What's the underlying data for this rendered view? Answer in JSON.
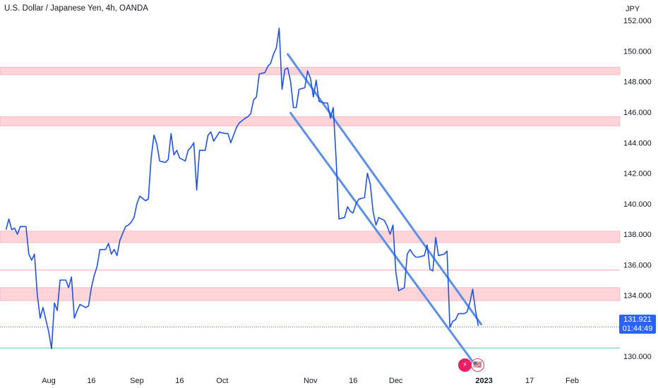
{
  "header": {
    "title": "U.S. Dollar / Japanese Yen, 4h, OANDA",
    "currency": "JPY"
  },
  "price_tag": {
    "price": "131.921",
    "countdown": "01:44:49"
  },
  "events": [
    {
      "icon": "lightning-icon",
      "glyph": "⚡"
    },
    {
      "icon": "us-flag-icon",
      "glyph": "🇺🇸"
    }
  ],
  "colors": {
    "line": "#1e53e5",
    "channel": "#5b8fe8",
    "zone_fill": "#ffcdd2",
    "zone_stroke": "#f7a1a7",
    "price_tag": "#2962ff",
    "last_price_line": "#2962ff",
    "support_line": "#4dd0a8"
  },
  "chart_data": {
    "type": "line",
    "title": "U.S. Dollar / Japanese Yen, 4h, OANDA",
    "ylabel": "JPY",
    "ylim": [
      128.85,
      153.35
    ],
    "x_ticks": [
      {
        "label": "Aug",
        "date": "2022-08-01"
      },
      {
        "label": "16",
        "date": "2022-08-16"
      },
      {
        "label": "Sep",
        "date": "2022-09-01"
      },
      {
        "label": "16",
        "date": "2022-09-16"
      },
      {
        "label": "Oct",
        "date": "2022-10-01"
      },
      {
        "label": "Nov",
        "date": "2022-11-01"
      },
      {
        "label": "16",
        "date": "2022-11-16"
      },
      {
        "label": "Dec",
        "date": "2022-12-01"
      },
      {
        "label": "2023",
        "date": "2023-01-01",
        "bold": true
      },
      {
        "label": "17",
        "date": "2023-01-17"
      },
      {
        "label": "Feb",
        "date": "2023-02-01"
      }
    ],
    "y_ticks": [
      "130.000",
      "132.000",
      "134.000",
      "136.000",
      "138.000",
      "140.000",
      "142.000",
      "144.000",
      "146.000",
      "148.000",
      "150.000",
      "152.000"
    ],
    "series": [
      {
        "points": [
          [
            "2022-07-17",
            138.3
          ],
          [
            "2022-07-18",
            139.0
          ],
          [
            "2022-07-19",
            138.3
          ],
          [
            "2022-07-20",
            138.4
          ],
          [
            "2022-07-21",
            138.0
          ],
          [
            "2022-07-22",
            138.5
          ],
          [
            "2022-07-24",
            138.5
          ],
          [
            "2022-07-25",
            136.7
          ],
          [
            "2022-07-26",
            136.3
          ],
          [
            "2022-07-27",
            136.7
          ],
          [
            "2022-07-28",
            134.0
          ],
          [
            "2022-07-29",
            132.5
          ],
          [
            "2022-07-30",
            133.2
          ],
          [
            "2022-08-01",
            131.6
          ],
          [
            "2022-08-02",
            130.5
          ],
          [
            "2022-08-03",
            133.5
          ],
          [
            "2022-08-04",
            133.0
          ],
          [
            "2022-08-05",
            135.0
          ],
          [
            "2022-08-07",
            135.0
          ],
          [
            "2022-08-08",
            134.5
          ],
          [
            "2022-08-09",
            135.2
          ],
          [
            "2022-08-10",
            132.5
          ],
          [
            "2022-08-11",
            133.0
          ],
          [
            "2022-08-12",
            133.4
          ],
          [
            "2022-08-14",
            133.2
          ],
          [
            "2022-08-15",
            133.3
          ],
          [
            "2022-08-16",
            134.5
          ],
          [
            "2022-08-17",
            135.3
          ],
          [
            "2022-08-18",
            135.9
          ],
          [
            "2022-08-19",
            137.0
          ],
          [
            "2022-08-21",
            137.0
          ],
          [
            "2022-08-22",
            137.4
          ],
          [
            "2022-08-23",
            136.7
          ],
          [
            "2022-08-24",
            137.0
          ],
          [
            "2022-08-25",
            136.6
          ],
          [
            "2022-08-26",
            137.6
          ],
          [
            "2022-08-28",
            138.5
          ],
          [
            "2022-08-29",
            138.6
          ],
          [
            "2022-08-30",
            138.8
          ],
          [
            "2022-08-31",
            139.1
          ],
          [
            "2022-09-01",
            140.0
          ],
          [
            "2022-09-02",
            140.5
          ],
          [
            "2022-09-04",
            140.2
          ],
          [
            "2022-09-05",
            140.3
          ],
          [
            "2022-09-06",
            143.0
          ],
          [
            "2022-09-07",
            144.5
          ],
          [
            "2022-09-08",
            143.9
          ],
          [
            "2022-09-09",
            142.8
          ],
          [
            "2022-09-11",
            142.7
          ],
          [
            "2022-09-12",
            142.9
          ],
          [
            "2022-09-13",
            144.6
          ],
          [
            "2022-09-14",
            143.2
          ],
          [
            "2022-09-15",
            143.5
          ],
          [
            "2022-09-16",
            143.0
          ],
          [
            "2022-09-18",
            142.8
          ],
          [
            "2022-09-19",
            143.5
          ],
          [
            "2022-09-20",
            143.7
          ],
          [
            "2022-09-21",
            144.0
          ],
          [
            "2022-09-22",
            140.9
          ],
          [
            "2022-09-23",
            143.5
          ],
          [
            "2022-09-25",
            143.5
          ],
          [
            "2022-09-26",
            144.5
          ],
          [
            "2022-09-27",
            144.7
          ],
          [
            "2022-09-28",
            144.1
          ],
          [
            "2022-09-29",
            144.4
          ],
          [
            "2022-09-30",
            144.7
          ],
          [
            "2022-10-02",
            144.6
          ],
          [
            "2022-10-03",
            144.6
          ],
          [
            "2022-10-04",
            144.0
          ],
          [
            "2022-10-05",
            144.5
          ],
          [
            "2022-10-06",
            145.0
          ],
          [
            "2022-10-07",
            145.3
          ],
          [
            "2022-10-09",
            145.6
          ],
          [
            "2022-10-10",
            145.7
          ],
          [
            "2022-10-11",
            145.9
          ],
          [
            "2022-10-12",
            146.8
          ],
          [
            "2022-10-13",
            147.0
          ],
          [
            "2022-10-14",
            148.5
          ],
          [
            "2022-10-16",
            148.6
          ],
          [
            "2022-10-17",
            149.0
          ],
          [
            "2022-10-18",
            149.2
          ],
          [
            "2022-10-19",
            149.8
          ],
          [
            "2022-10-20",
            150.2
          ],
          [
            "2022-10-21",
            151.5
          ],
          [
            "2022-10-22",
            147.5
          ],
          [
            "2022-10-23",
            148.8
          ],
          [
            "2022-10-24",
            148.9
          ],
          [
            "2022-10-25",
            148.0
          ],
          [
            "2022-10-26",
            146.3
          ],
          [
            "2022-10-27",
            146.3
          ],
          [
            "2022-10-28",
            147.5
          ],
          [
            "2022-10-30",
            147.6
          ],
          [
            "2022-10-31",
            148.7
          ],
          [
            "2022-11-01",
            148.2
          ],
          [
            "2022-11-02",
            147.0
          ],
          [
            "2022-11-03",
            148.1
          ],
          [
            "2022-11-04",
            146.7
          ],
          [
            "2022-11-06",
            146.6
          ],
          [
            "2022-11-07",
            146.6
          ],
          [
            "2022-11-08",
            145.6
          ],
          [
            "2022-11-09",
            146.3
          ],
          [
            "2022-11-10",
            143.0
          ],
          [
            "2022-11-11",
            139.0
          ],
          [
            "2022-11-13",
            139.1
          ],
          [
            "2022-11-14",
            139.8
          ],
          [
            "2022-11-15",
            139.5
          ],
          [
            "2022-11-16",
            139.4
          ],
          [
            "2022-11-17",
            140.0
          ],
          [
            "2022-11-18",
            140.3
          ],
          [
            "2022-11-20",
            140.4
          ],
          [
            "2022-11-21",
            142.0
          ],
          [
            "2022-11-22",
            141.3
          ],
          [
            "2022-11-23",
            139.5
          ],
          [
            "2022-11-24",
            138.6
          ],
          [
            "2022-11-25",
            139.1
          ],
          [
            "2022-11-27",
            138.9
          ],
          [
            "2022-11-28",
            138.5
          ],
          [
            "2022-11-29",
            138.0
          ],
          [
            "2022-11-30",
            138.6
          ],
          [
            "2022-12-01",
            135.5
          ],
          [
            "2022-12-02",
            134.3
          ],
          [
            "2022-12-04",
            134.5
          ],
          [
            "2022-12-05",
            136.7
          ],
          [
            "2022-12-06",
            137.0
          ],
          [
            "2022-12-07",
            136.7
          ],
          [
            "2022-12-08",
            136.5
          ],
          [
            "2022-12-09",
            136.5
          ],
          [
            "2022-12-11",
            136.6
          ],
          [
            "2022-12-12",
            137.3
          ],
          [
            "2022-12-13",
            135.7
          ],
          [
            "2022-12-14",
            135.6
          ],
          [
            "2022-12-15",
            137.8
          ],
          [
            "2022-12-16",
            136.6
          ],
          [
            "2022-12-18",
            136.7
          ],
          [
            "2022-12-19",
            136.9
          ],
          [
            "2022-12-20",
            131.9
          ],
          [
            "2022-12-21",
            132.3
          ],
          [
            "2022-12-22",
            132.4
          ],
          [
            "2022-12-23",
            132.8
          ],
          [
            "2022-12-25",
            132.8
          ],
          [
            "2022-12-26",
            132.9
          ],
          [
            "2022-12-27",
            133.5
          ],
          [
            "2022-12-28",
            134.4
          ],
          [
            "2022-12-29",
            133.0
          ],
          [
            "2022-12-30",
            132.0
          ]
        ]
      }
    ],
    "zones": [
      {
        "from": 148.45,
        "to": 148.95
      },
      {
        "from": 145.1,
        "to": 145.7
      },
      {
        "from": 137.45,
        "to": 138.2
      },
      {
        "from": 133.65,
        "to": 134.5
      }
    ],
    "horizontal_lines": [
      {
        "kind": "resistance",
        "value": 135.65
      },
      {
        "kind": "last_price",
        "value": 131.921
      },
      {
        "kind": "support",
        "value": 130.55
      }
    ],
    "channel_lines": [
      {
        "from": [
          "2022-10-24",
          149.8
        ],
        "to": [
          "2022-12-31",
          132.1
        ]
      },
      {
        "from": [
          "2022-10-25",
          145.95
        ],
        "to": [
          "2022-12-29",
          129.4
        ]
      }
    ]
  }
}
